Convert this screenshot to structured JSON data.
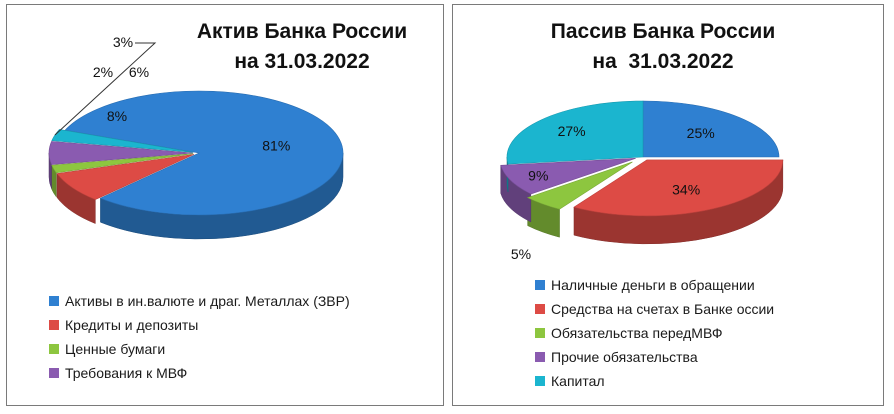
{
  "chart_data": [
    {
      "type": "pie",
      "title": "Актив Банка России\nна 31.03.2022",
      "slices": [
        {
          "label": "Активы в ин.валюте и драг. Металлах (ЗВР)",
          "value": 81,
          "data_label": "81%",
          "color": "#2F80D1"
        },
        {
          "label": "Кредиты и депозиты",
          "value": 8,
          "data_label": "8%",
          "color": "#DD4B45"
        },
        {
          "label": "Ценные бумаги",
          "value": 2,
          "data_label": "2%",
          "color": "#8DC63F"
        },
        {
          "label": "Требования к МВФ",
          "value": 6,
          "data_label": "6%",
          "color": "#8A5BB0"
        },
        {
          "label": "",
          "value": 3,
          "data_label": "3%",
          "color": "#1BB5CF"
        }
      ],
      "legend_position": "bottom"
    },
    {
      "type": "pie",
      "title": "Пассив Банка России\nна  31.03.2022",
      "slices": [
        {
          "label": "Наличные деньги в обращении",
          "value": 25,
          "data_label": "25%",
          "color": "#2F80D1"
        },
        {
          "label": "Средства на счетах в Банке оссии",
          "value": 34,
          "data_label": "34%",
          "color": "#DD4B45"
        },
        {
          "label": "Обязательства передМВФ",
          "value": 5,
          "data_label": "5%",
          "color": "#8DC63F"
        },
        {
          "label": "Прочие обязательства",
          "value": 9,
          "data_label": "9%",
          "color": "#8A5BB0"
        },
        {
          "label": "Капитал",
          "value": 27,
          "data_label": "27%",
          "color": "#1BB5CF"
        }
      ],
      "legend_position": "bottom"
    }
  ]
}
